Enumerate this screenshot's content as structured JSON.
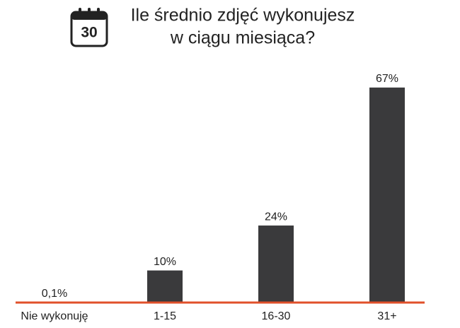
{
  "chart_data": {
    "type": "bar",
    "title": [
      "Ile średnio zdjęć wykonujesz",
      "w ciągu miesiąca?"
    ],
    "icon_label": "30",
    "categories": [
      "Nie wykonuję",
      "1-15",
      "16-30",
      "31+"
    ],
    "values": [
      0.1,
      10,
      24,
      67
    ],
    "value_labels": [
      "0,1%",
      "10%",
      "24%",
      "67%"
    ],
    "color": "#3a3a3c",
    "baseline_color": "#e0502a"
  }
}
